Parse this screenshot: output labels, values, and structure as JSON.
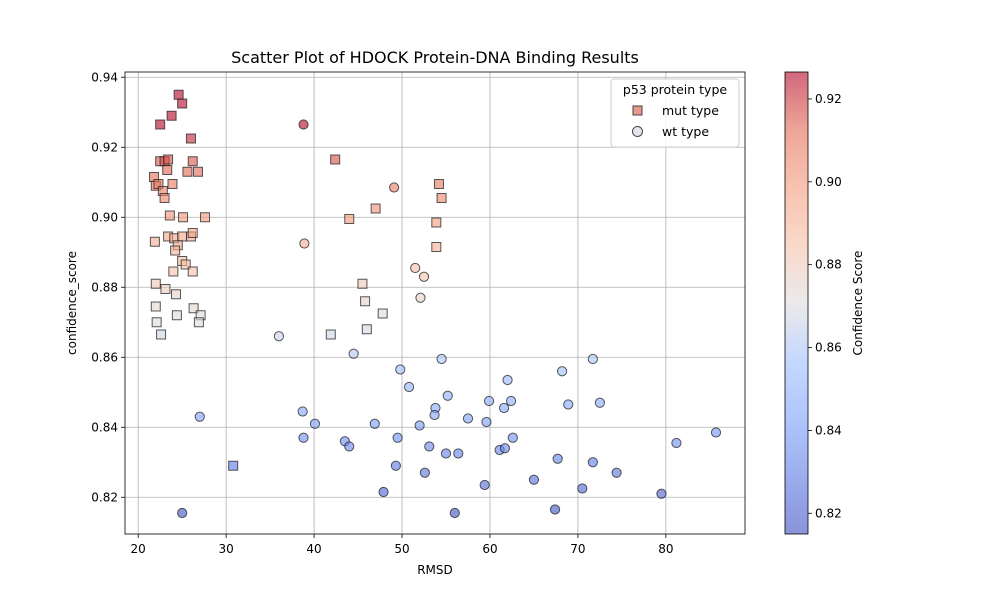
{
  "chart_data": {
    "type": "scatter",
    "title": "Scatter Plot of HDOCK Protein-DNA Binding Results",
    "xlabel": "RMSD",
    "ylabel": "confidence_score",
    "xlim": [
      18.5,
      89
    ],
    "ylim": [
      0.8095,
      0.9415
    ],
    "x_ticks": [
      20,
      30,
      40,
      50,
      60,
      70,
      80
    ],
    "y_ticks": [
      0.82,
      0.84,
      0.86,
      0.88,
      0.9,
      0.92,
      0.94
    ],
    "y_tick_labels": [
      "0.82",
      "0.84",
      "0.86",
      "0.88",
      "0.90",
      "0.92",
      "0.94"
    ],
    "grid": true,
    "legend": {
      "title": "p53 protein type",
      "placement": "top-right",
      "entries": [
        "mut type",
        "wt type"
      ]
    },
    "colorbar": {
      "label": "Confidence Score",
      "range": [
        0.815,
        0.9265
      ],
      "ticks": [
        0.82,
        0.84,
        0.86,
        0.88,
        0.9,
        0.92
      ],
      "tick_labels": [
        "0.82",
        "0.84",
        "0.86",
        "0.88",
        "0.90",
        "0.92"
      ],
      "colormap": "coolwarm"
    },
    "series": [
      {
        "name": "mut type",
        "marker": "square",
        "points": [
          [
            24.6,
            0.935
          ],
          [
            25.0,
            0.9325
          ],
          [
            23.8,
            0.929
          ],
          [
            22.5,
            0.9265
          ],
          [
            26.0,
            0.9225
          ],
          [
            22.5,
            0.916
          ],
          [
            23.0,
            0.916
          ],
          [
            23.4,
            0.9165
          ],
          [
            26.2,
            0.916
          ],
          [
            23.3,
            0.9135
          ],
          [
            25.6,
            0.913
          ],
          [
            26.8,
            0.913
          ],
          [
            21.8,
            0.9115
          ],
          [
            22.0,
            0.909
          ],
          [
            22.3,
            0.9095
          ],
          [
            23.9,
            0.9095
          ],
          [
            22.8,
            0.9075
          ],
          [
            23.0,
            0.9055
          ],
          [
            42.4,
            0.9165
          ],
          [
            54.2,
            0.9095
          ],
          [
            54.5,
            0.9055
          ],
          [
            47.0,
            0.9025
          ],
          [
            23.6,
            0.9005
          ],
          [
            25.1,
            0.9
          ],
          [
            27.6,
            0.9
          ],
          [
            44.0,
            0.8995
          ],
          [
            53.9,
            0.8985
          ],
          [
            23.4,
            0.8945
          ],
          [
            24.1,
            0.894
          ],
          [
            25.0,
            0.8945
          ],
          [
            26.0,
            0.8945
          ],
          [
            26.2,
            0.8955
          ],
          [
            21.9,
            0.893
          ],
          [
            24.5,
            0.892
          ],
          [
            24.2,
            0.8905
          ],
          [
            53.9,
            0.8915
          ],
          [
            25.0,
            0.8875
          ],
          [
            25.4,
            0.8865
          ],
          [
            26.2,
            0.8845
          ],
          [
            24.0,
            0.8845
          ],
          [
            45.5,
            0.881
          ],
          [
            22.0,
            0.881
          ],
          [
            23.1,
            0.8795
          ],
          [
            24.3,
            0.878
          ],
          [
            45.8,
            0.876
          ],
          [
            22.0,
            0.8745
          ],
          [
            26.3,
            0.874
          ],
          [
            24.4,
            0.872
          ],
          [
            27.1,
            0.872
          ],
          [
            47.8,
            0.8725
          ],
          [
            22.1,
            0.87
          ],
          [
            26.9,
            0.87
          ],
          [
            46.0,
            0.868
          ],
          [
            22.6,
            0.8665
          ],
          [
            41.9,
            0.8665
          ],
          [
            30.8,
            0.829
          ]
        ]
      },
      {
        "name": "wt type",
        "marker": "circle",
        "points": [
          [
            38.8,
            0.9265
          ],
          [
            49.1,
            0.9085
          ],
          [
            38.9,
            0.8925
          ],
          [
            51.5,
            0.8855
          ],
          [
            52.5,
            0.883
          ],
          [
            52.1,
            0.877
          ],
          [
            36.0,
            0.866
          ],
          [
            44.5,
            0.861
          ],
          [
            54.5,
            0.8595
          ],
          [
            71.7,
            0.8595
          ],
          [
            49.8,
            0.8565
          ],
          [
            68.2,
            0.856
          ],
          [
            62.0,
            0.8535
          ],
          [
            50.8,
            0.8515
          ],
          [
            55.2,
            0.849
          ],
          [
            59.9,
            0.8475
          ],
          [
            62.4,
            0.8475
          ],
          [
            68.9,
            0.8465
          ],
          [
            72.5,
            0.847
          ],
          [
            53.8,
            0.8455
          ],
          [
            61.6,
            0.8455
          ],
          [
            38.7,
            0.8445
          ],
          [
            53.7,
            0.8435
          ],
          [
            27.0,
            0.843
          ],
          [
            57.5,
            0.8425
          ],
          [
            59.6,
            0.8415
          ],
          [
            40.1,
            0.841
          ],
          [
            46.9,
            0.841
          ],
          [
            52.0,
            0.8405
          ],
          [
            38.8,
            0.837
          ],
          [
            43.5,
            0.836
          ],
          [
            49.5,
            0.837
          ],
          [
            62.6,
            0.837
          ],
          [
            81.2,
            0.8355
          ],
          [
            85.7,
            0.8385
          ],
          [
            44.0,
            0.8345
          ],
          [
            53.1,
            0.8345
          ],
          [
            61.1,
            0.8335
          ],
          [
            61.7,
            0.834
          ],
          [
            55.0,
            0.8325
          ],
          [
            56.4,
            0.8325
          ],
          [
            67.7,
            0.831
          ],
          [
            71.7,
            0.83
          ],
          [
            49.3,
            0.829
          ],
          [
            52.6,
            0.827
          ],
          [
            74.4,
            0.827
          ],
          [
            65.0,
            0.825
          ],
          [
            59.4,
            0.8235
          ],
          [
            70.5,
            0.8225
          ],
          [
            47.9,
            0.8215
          ],
          [
            79.5,
            0.821
          ],
          [
            67.4,
            0.8165
          ],
          [
            25.0,
            0.8155
          ],
          [
            56.0,
            0.8155
          ]
        ]
      }
    ]
  }
}
